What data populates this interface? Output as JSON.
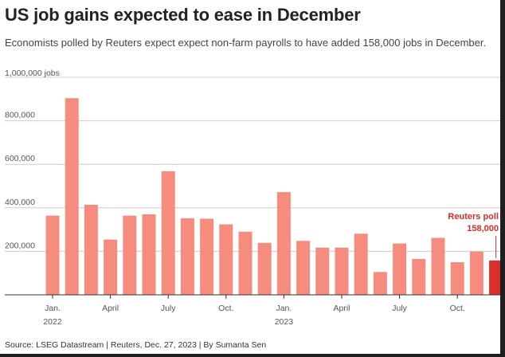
{
  "title": "US job gains expected to ease in December",
  "subtitle": "Economists polled by Reuters expect expect non-farm payrolls to have added 158,000 jobs in December.",
  "source": "Source: LSEG Datastream | Reuters, Dec. 27, 2023 | By Sumanta Sen",
  "colors": {
    "bar": "#f58c7e",
    "highlight": "#db2e2e",
    "grid": "#cccccc"
  },
  "chart_data": {
    "type": "bar",
    "ylabel": "1,000,000 jobs",
    "ylim": [
      0,
      1000000
    ],
    "y_ticks": [
      {
        "value": 200000,
        "label": "200,000"
      },
      {
        "value": 400000,
        "label": "400,000"
      },
      {
        "value": 600000,
        "label": "600,000"
      },
      {
        "value": 800000,
        "label": "800,000"
      }
    ],
    "categories": [
      "Jan 2022",
      "Feb 2022",
      "Mar 2022",
      "Apr 2022",
      "May 2022",
      "Jun 2022",
      "Jul 2022",
      "Aug 2022",
      "Sep 2022",
      "Oct 2022",
      "Nov 2022",
      "Dec 2022",
      "Jan 2023",
      "Feb 2023",
      "Mar 2023",
      "Apr 2023",
      "May 2023",
      "Jun 2023",
      "Jul 2023",
      "Aug 2023",
      "Sep 2023",
      "Oct 2023",
      "Nov 2023",
      "Dec 2023"
    ],
    "values": [
      364000,
      904000,
      414000,
      254000,
      364000,
      370000,
      568000,
      352000,
      350000,
      324000,
      290000,
      239000,
      472000,
      248000,
      217000,
      217000,
      281000,
      105000,
      236000,
      165000,
      262000,
      150000,
      199000,
      158000
    ],
    "highlight_index": 23,
    "x_labels": [
      {
        "index": 0,
        "label": "Jan.",
        "year": "2022"
      },
      {
        "index": 3,
        "label": "April"
      },
      {
        "index": 6,
        "label": "July"
      },
      {
        "index": 9,
        "label": "Oct."
      },
      {
        "index": 12,
        "label": "Jan.",
        "year": "2023"
      },
      {
        "index": 15,
        "label": "April"
      },
      {
        "index": 18,
        "label": "July"
      },
      {
        "index": 21,
        "label": "Oct."
      }
    ],
    "annotation": {
      "index": 23,
      "line1": "Reuters poll",
      "line2": "158,000"
    }
  }
}
